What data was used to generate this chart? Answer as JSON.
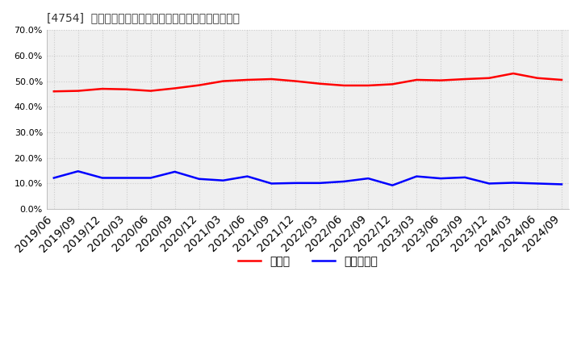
{
  "title": "[4754]  現預金、有利子負債の総資産に対する比率の推移",
  "x_labels": [
    "2019/06",
    "2019/09",
    "2019/12",
    "2020/03",
    "2020/06",
    "2020/09",
    "2020/12",
    "2021/03",
    "2021/06",
    "2021/09",
    "2021/12",
    "2022/03",
    "2022/06",
    "2022/09",
    "2022/12",
    "2023/03",
    "2023/06",
    "2023/09",
    "2023/12",
    "2024/03",
    "2024/06",
    "2024/09"
  ],
  "cash": [
    0.46,
    0.462,
    0.47,
    0.468,
    0.462,
    0.472,
    0.484,
    0.5,
    0.505,
    0.508,
    0.5,
    0.49,
    0.483,
    0.483,
    0.488,
    0.505,
    0.503,
    0.508,
    0.512,
    0.53,
    0.512,
    0.505
  ],
  "debt": [
    0.122,
    0.148,
    0.122,
    0.122,
    0.122,
    0.146,
    0.118,
    0.112,
    0.128,
    0.1,
    0.102,
    0.102,
    0.108,
    0.12,
    0.093,
    0.128,
    0.12,
    0.124,
    0.1,
    0.103,
    0.1,
    0.097
  ],
  "cash_color": "#ff0000",
  "debt_color": "#0000ff",
  "bg_color": "#ffffff",
  "plot_bg_color": "#efefef",
  "grid_color": "#cccccc",
  "ylim": [
    0.0,
    0.7
  ],
  "yticks": [
    0.0,
    0.1,
    0.2,
    0.3,
    0.4,
    0.5,
    0.6,
    0.7
  ],
  "legend_cash": "現預金",
  "legend_debt": "有利子負債",
  "title_fontsize": 12,
  "axis_fontsize": 8,
  "legend_fontsize": 10
}
